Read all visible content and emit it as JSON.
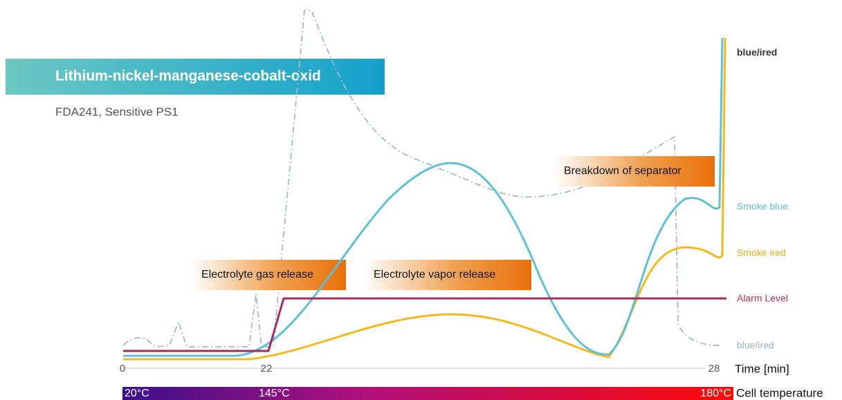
{
  "header": {
    "title": "Lithium-nickel-manganese-cobalt-oxid",
    "subtitle": "FDA241, Sensitive PS1"
  },
  "annotations": [
    "Electrolyte gas release",
    "Electrolyte vapor release",
    "Breakdown of separator"
  ],
  "curve_labels": [
    "blue/ired",
    "Smoke blue",
    "Smoke ired",
    "Alarm Level",
    "blue/ired"
  ],
  "time_axis": {
    "ticks": [
      "0",
      "22",
      "28"
    ],
    "label": "Time [min]"
  },
  "temperature_bar": {
    "labels": [
      "20°C",
      "145°C",
      "180°C"
    ],
    "label": "Cell temperature"
  }
}
